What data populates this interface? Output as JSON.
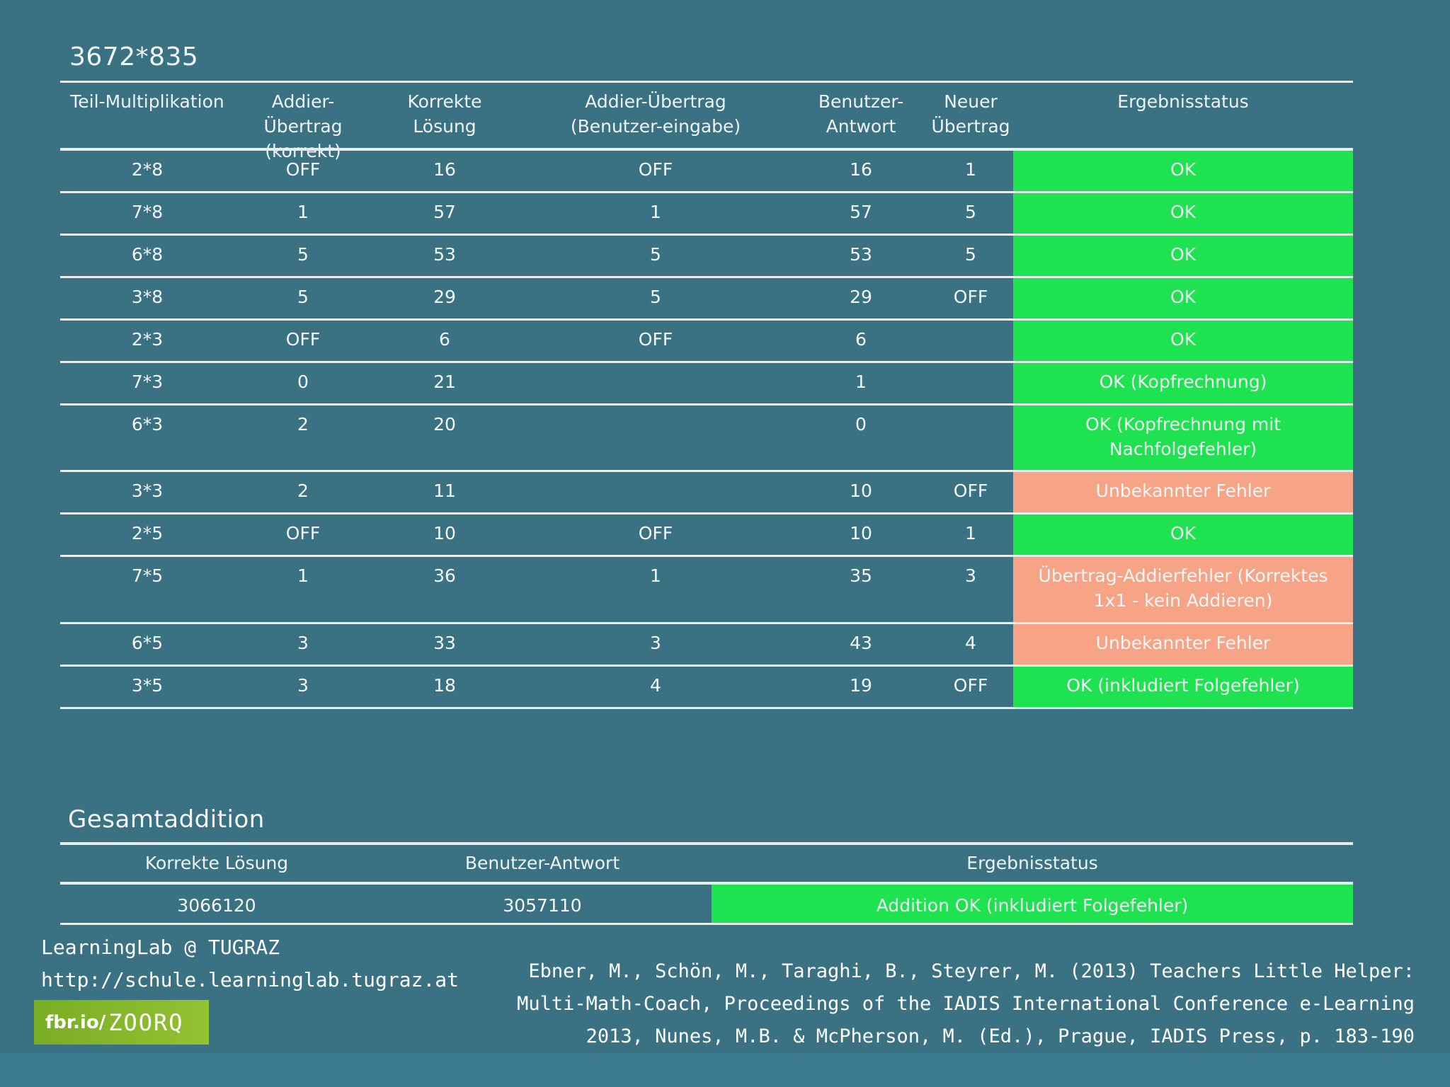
{
  "section1": {
    "title": "3672*835",
    "headers": [
      "Teil-Multiplikation",
      "Addier-Übertrag\n(korrekt)",
      "Korrekte\nLösung",
      "Addier-Übertrag\n(Benutzer-eingabe)",
      "Benutzer-\nAntwort",
      "Neuer\nÜbertrag",
      "Ergebnisstatus"
    ],
    "rows": [
      {
        "cells": [
          "2*8",
          "OFF",
          "16",
          "OFF",
          "16",
          "1"
        ],
        "status": "OK",
        "kind": "ok"
      },
      {
        "cells": [
          "7*8",
          "1",
          "57",
          "1",
          "57",
          "5"
        ],
        "status": "OK",
        "kind": "ok"
      },
      {
        "cells": [
          "6*8",
          "5",
          "53",
          "5",
          "53",
          "5"
        ],
        "status": "OK",
        "kind": "ok"
      },
      {
        "cells": [
          "3*8",
          "5",
          "29",
          "5",
          "29",
          "OFF"
        ],
        "status": "OK",
        "kind": "ok"
      },
      {
        "cells": [
          "2*3",
          "OFF",
          "6",
          "OFF",
          "6",
          ""
        ],
        "status": "OK",
        "kind": "ok"
      },
      {
        "cells": [
          "7*3",
          "0",
          "21",
          "",
          "1",
          ""
        ],
        "status": "OK (Kopfrechnung)",
        "kind": "ok"
      },
      {
        "cells": [
          "6*3",
          "2",
          "20",
          "",
          "0",
          ""
        ],
        "status": "OK (Kopfrechnung mit\nNachfolgefehler)",
        "kind": "ok"
      },
      {
        "cells": [
          "3*3",
          "2",
          "11",
          "",
          "10",
          "OFF"
        ],
        "status": "Unbekannter Fehler",
        "kind": "err"
      },
      {
        "cells": [
          "2*5",
          "OFF",
          "10",
          "OFF",
          "10",
          "1"
        ],
        "status": "OK",
        "kind": "ok"
      },
      {
        "cells": [
          "7*5",
          "1",
          "36",
          "1",
          "35",
          "3"
        ],
        "status": "Übertrag-Addierfehler (Korrektes\n1x1 - kein Addieren)",
        "kind": "err"
      },
      {
        "cells": [
          "6*5",
          "3",
          "33",
          "3",
          "43",
          "4"
        ],
        "status": "Unbekannter Fehler",
        "kind": "err"
      },
      {
        "cells": [
          "3*5",
          "3",
          "18",
          "4",
          "19",
          "OFF"
        ],
        "status": "OK (inkludiert Folgefehler)",
        "kind": "ok"
      }
    ]
  },
  "section2": {
    "title": "Gesamtaddition",
    "headers": [
      "Korrekte Lösung",
      "Benutzer-Antwort",
      "Ergebnisstatus"
    ],
    "row": {
      "cells": [
        "3066120",
        "3057110"
      ],
      "status": "Addition OK (inkludiert Folgefehler)",
      "kind": "ok"
    }
  },
  "footer": {
    "lab_name": "LearningLab @ TUGRAZ",
    "lab_url": "http://schule.learninglab.tugraz.at",
    "shortlink_prefix": "fbr.io/",
    "shortlink_code": "ZOORQ",
    "citation_lines": [
      "Ebner, M., Schön, M., Taraghi, B., Steyrer, M. (2013) Teachers Little Helper:",
      "Multi-Math-Coach, Proceedings of the IADIS International Conference e-Learning",
      "2013, Nunes, M.B. & McPherson, M. (Ed.), Prague, IADIS Press, p. 183-190"
    ]
  },
  "colors": {
    "background": "#3a7283",
    "ok": "#1ee24f",
    "error": "#f7a486"
  }
}
